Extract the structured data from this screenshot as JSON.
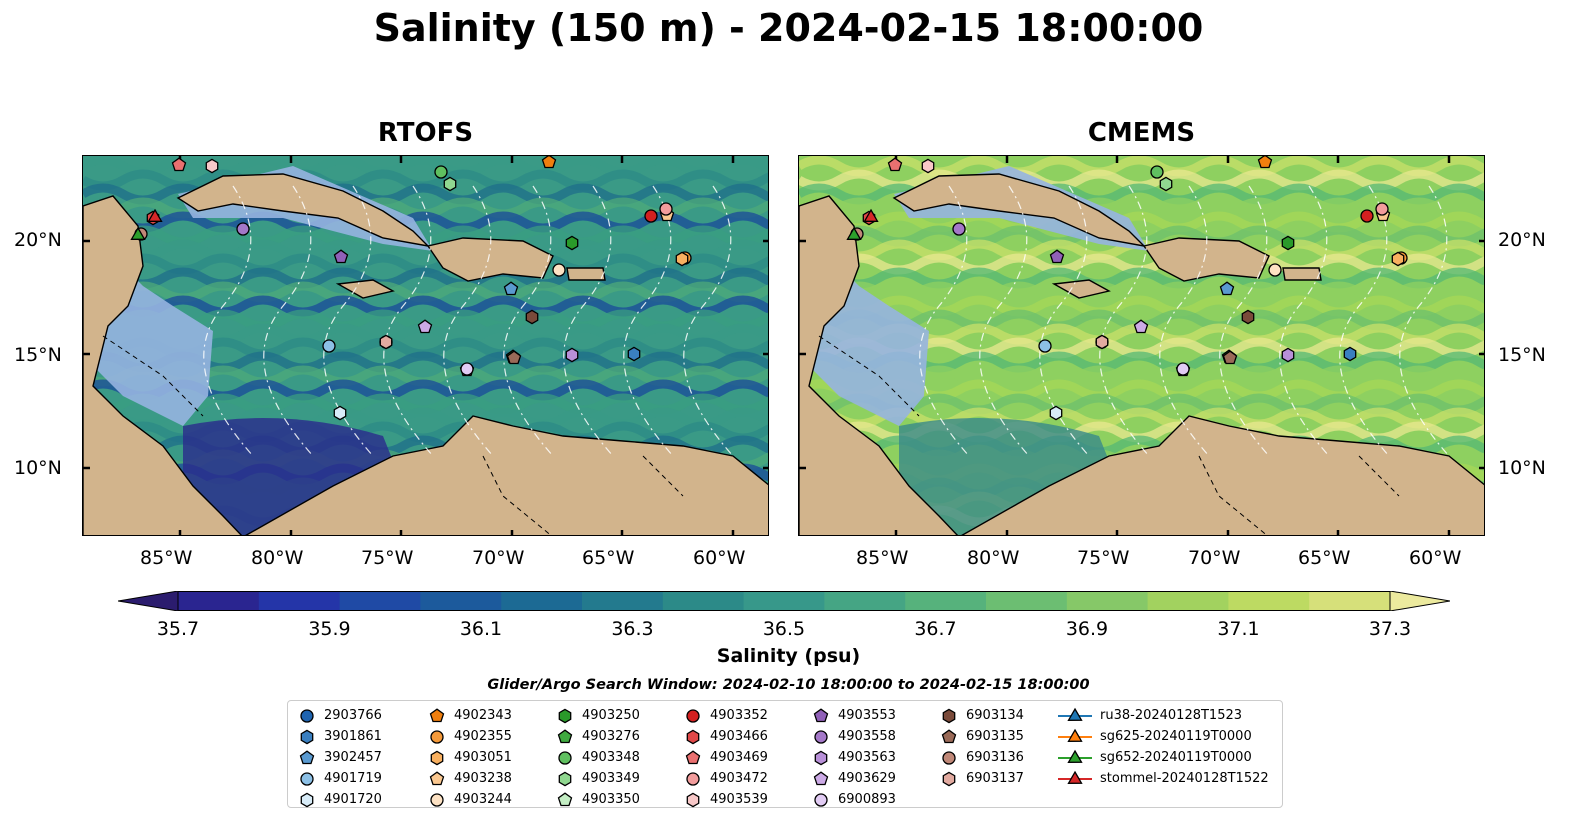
{
  "title": "Salinity (150 m) - 2024-02-15 18:00:00",
  "panels": [
    {
      "title": "RTOFS",
      "palette": [
        "#3a9a86",
        "#2c8a86",
        "#1f6e8a",
        "#4daa7a",
        "#1a4a9a",
        "#3a9e80"
      ]
    },
    {
      "title": "CMEMS",
      "palette": [
        "#8ed060",
        "#a6d857",
        "#6cc06c",
        "#c8e06a",
        "#e8e890",
        "#54b874"
      ]
    }
  ],
  "axes": {
    "lon_ticks": [
      "85°W",
      "80°W",
      "75°W",
      "70°W",
      "65°W",
      "60°W"
    ],
    "lat_ticks": [
      "20°N",
      "15°N",
      "10°N"
    ]
  },
  "colorbar": {
    "label": "Salinity (psu)",
    "ticks": [
      "35.7",
      "35.9",
      "36.1",
      "36.3",
      "36.5",
      "36.7",
      "36.9",
      "37.1",
      "37.3"
    ],
    "colors": [
      "#2b1c6e",
      "#2a2590",
      "#2435a8",
      "#1f4aa5",
      "#1c5a9c",
      "#1c6a94",
      "#237a8e",
      "#2c8a88",
      "#37988a",
      "#45a584",
      "#56b27c",
      "#6cbe72",
      "#86c868",
      "#a2d25f",
      "#bdda62",
      "#d6e07a",
      "#ecea9e"
    ]
  },
  "legend": {
    "title": "Glider/Argo Search Window: 2024-02-10 18:00:00 to 2024-02-15 18:00:00",
    "columns": [
      [
        {
          "label": "2903766",
          "marker": "circle",
          "color": "#1f64b0"
        },
        {
          "label": "3901861",
          "marker": "hexagon",
          "color": "#3a7fc0"
        },
        {
          "label": "3902457",
          "marker": "pentagon",
          "color": "#5a9ad0"
        },
        {
          "label": "4901719",
          "marker": "circle",
          "color": "#8cc0e6"
        },
        {
          "label": "4901720",
          "marker": "hexagon",
          "color": "#d8ecf8"
        }
      ],
      [
        {
          "label": "4902343",
          "marker": "pentagon",
          "color": "#f07f0e"
        },
        {
          "label": "4902355",
          "marker": "circle",
          "color": "#f59a3a"
        },
        {
          "label": "4903051",
          "marker": "hexagon",
          "color": "#f8b060"
        },
        {
          "label": "4903238",
          "marker": "pentagon",
          "color": "#fbc890"
        },
        {
          "label": "4903244",
          "marker": "circle",
          "color": "#fde2c4"
        }
      ],
      [
        {
          "label": "4903250",
          "marker": "hexagon",
          "color": "#2a9a2a"
        },
        {
          "label": "4903276",
          "marker": "pentagon",
          "color": "#40aa40"
        },
        {
          "label": "4903348",
          "marker": "circle",
          "color": "#60c060"
        },
        {
          "label": "4903349",
          "marker": "hexagon",
          "color": "#90d890"
        },
        {
          "label": "4903350",
          "marker": "pentagon",
          "color": "#c4eec4"
        }
      ],
      [
        {
          "label": "4903352",
          "marker": "circle",
          "color": "#d42020"
        },
        {
          "label": "4903466",
          "marker": "hexagon",
          "color": "#e04848"
        },
        {
          "label": "4903469",
          "marker": "pentagon",
          "color": "#ea7070"
        },
        {
          "label": "4903472",
          "marker": "circle",
          "color": "#f29c9c"
        },
        {
          "label": "4903539",
          "marker": "hexagon",
          "color": "#f8c8c8"
        }
      ],
      [
        {
          "label": "4903553",
          "marker": "pentagon",
          "color": "#9060b8"
        },
        {
          "label": "4903558",
          "marker": "circle",
          "color": "#a478c8"
        },
        {
          "label": "4903563",
          "marker": "hexagon",
          "color": "#b890d8"
        },
        {
          "label": "4903629",
          "marker": "pentagon",
          "color": "#ccaae6"
        },
        {
          "label": "6900893",
          "marker": "circle",
          "color": "#e2ccf4"
        }
      ],
      [
        {
          "label": "6903134",
          "marker": "hexagon",
          "color": "#7a4a3a"
        },
        {
          "label": "6903135",
          "marker": "pentagon",
          "color": "#9a6a58"
        },
        {
          "label": "6903136",
          "marker": "circle",
          "color": "#c08878"
        },
        {
          "label": "6903137",
          "marker": "hexagon",
          "color": "#e2aaa0"
        }
      ],
      [
        {
          "label": "ru38-20240128T1523",
          "marker": "triangle-line",
          "color": "#1f77b4"
        },
        {
          "label": "sg625-20240119T0000",
          "marker": "triangle-line",
          "color": "#ff7f0e"
        },
        {
          "label": "sg652-20240119T0000",
          "marker": "triangle-line",
          "color": "#2ca02c"
        },
        {
          "label": "stommel-20240128T1522",
          "marker": "triangle-line",
          "color": "#d62728"
        }
      ]
    ]
  }
}
